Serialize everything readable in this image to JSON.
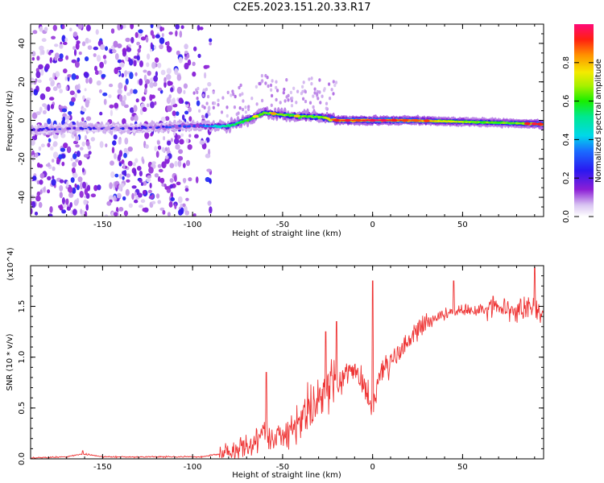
{
  "title": "C2E5.2023.151.20.33.R17",
  "chart_data": [
    {
      "type": "heatmap",
      "panel": "spectrogram",
      "xlabel": "Height of straight line (km)",
      "ylabel": "Frequency (Hz)",
      "xlim": [
        -190,
        95
      ],
      "ylim": [
        -50,
        50
      ],
      "xticks": [
        -150,
        -100,
        -50,
        0,
        50
      ],
      "xtick_labels": [
        "-150",
        "-100",
        "-50",
        "0",
        "50"
      ],
      "yticks": [
        -40,
        -20,
        0,
        20,
        40
      ],
      "ytick_labels": [
        "-40",
        "-20",
        "0",
        "20",
        "40"
      ],
      "colorbar": {
        "label": "Normalized spectral amplitude",
        "range": [
          0.0,
          1.0
        ],
        "ticks": [
          0.0,
          0.2,
          0.4,
          0.6,
          0.8
        ],
        "tick_labels": [
          "0.0",
          "0.2",
          "0.4",
          "0.6",
          "0.8"
        ]
      },
      "noise_region_x": [
        -190,
        -90
      ],
      "ridge": {
        "x": [
          -190,
          -160,
          -130,
          -100,
          -90,
          -80,
          -70,
          -60,
          -50,
          -40,
          -30,
          -20,
          -10,
          0,
          20,
          40,
          60,
          80,
          95
        ],
        "y": [
          -5,
          -4,
          -4,
          -3,
          -3,
          -3,
          0,
          4,
          3,
          2,
          2,
          0,
          0,
          0,
          0,
          -0.5,
          -1,
          -1.5,
          -2
        ],
        "amplitude": [
          0.2,
          0.2,
          0.2,
          0.3,
          0.35,
          0.5,
          0.55,
          0.6,
          0.6,
          0.6,
          0.6,
          0.85,
          0.85,
          0.95,
          0.85,
          0.7,
          0.6,
          0.6,
          0.9
        ]
      }
    },
    {
      "type": "line",
      "panel": "snr",
      "xlabel": "Height of straight line (km)",
      "ylabel": "SNR (10 * v/v)",
      "y_multiplier": "(x10^4)",
      "xlim": [
        -190,
        95
      ],
      "ylim": [
        0,
        1.9
      ],
      "xticks": [
        -150,
        -100,
        -50,
        0,
        50
      ],
      "xtick_labels": [
        "-150",
        "-100",
        "-50",
        "0",
        "50"
      ],
      "yticks": [
        0.0,
        0.5,
        1.0,
        1.5
      ],
      "ytick_labels": [
        "0.0",
        "0.5",
        "1.0",
        "1.5"
      ],
      "color": "#ee3333",
      "series": [
        {
          "name": "SNR",
          "x": [
            -190,
            -170,
            -161,
            -150,
            -130,
            -110,
            -95,
            -85,
            -75,
            -65,
            -60,
            -55,
            -50,
            -45,
            -40,
            -35,
            -30,
            -25,
            -20,
            -15,
            -10,
            -5,
            0,
            5,
            10,
            15,
            20,
            25,
            30,
            40,
            50,
            60,
            70,
            80,
            90,
            95
          ],
          "y": [
            0.01,
            0.02,
            0.05,
            0.02,
            0.02,
            0.02,
            0.02,
            0.05,
            0.08,
            0.15,
            0.25,
            0.22,
            0.28,
            0.3,
            0.4,
            0.5,
            0.55,
            0.7,
            0.75,
            0.8,
            0.85,
            0.75,
            0.5,
            0.9,
            0.95,
            1.05,
            1.15,
            1.25,
            1.35,
            1.42,
            1.48,
            1.45,
            1.5,
            1.45,
            1.5,
            1.4
          ],
          "spikes": [
            {
              "x": -161,
              "y": 0.08
            },
            {
              "x": -59,
              "y": 0.85
            },
            {
              "x": -26,
              "y": 1.25
            },
            {
              "x": -20,
              "y": 1.35
            },
            {
              "x": 0,
              "y": 1.75
            },
            {
              "x": 45,
              "y": 1.75
            },
            {
              "x": 67,
              "y": 1.6
            },
            {
              "x": 90,
              "y": 1.88
            }
          ]
        }
      ]
    }
  ]
}
